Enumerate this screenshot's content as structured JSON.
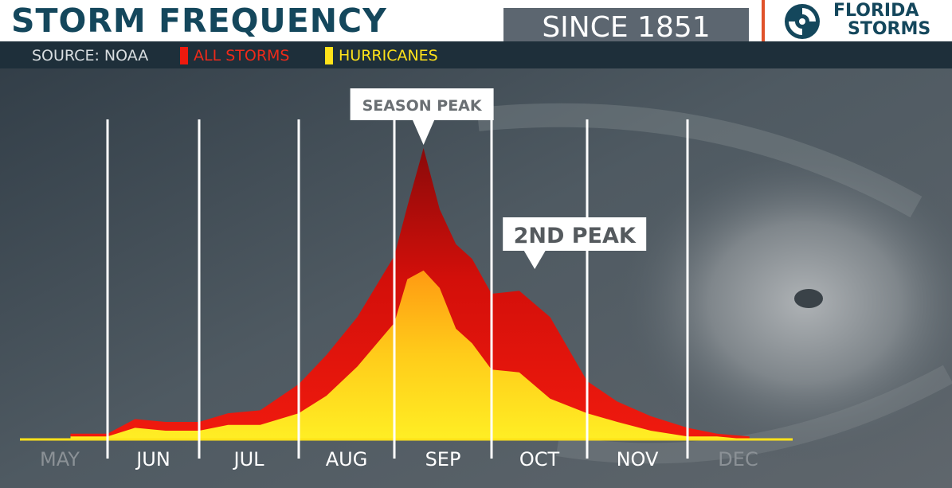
{
  "header": {
    "title": "STORM FREQUENCY",
    "since": "SINCE 1851",
    "source": "SOURCE: NOAA",
    "logo_line1": "FLORIDA",
    "logo_line2": "STORMS",
    "logo_icon": "hurricane-icon"
  },
  "colors": {
    "all_storms": "#ee1a0e",
    "hurricanes": "#ffe21a",
    "title": "#14475c",
    "accent": "#e0522a"
  },
  "chart_data": {
    "type": "area",
    "title": "STORM FREQUENCY",
    "subtitle": "SINCE 1851",
    "grid": true,
    "legend": "top-left",
    "xlabel": "",
    "ylabel": "",
    "x_ticks": [
      "MAY",
      "JUN",
      "JUL",
      "AUG",
      "SEP",
      "OCT",
      "NOV",
      "DEC"
    ],
    "x": [
      "May 20",
      "Jun 1",
      "Jun 10",
      "Jun 20",
      "Jul 1",
      "Jul 10",
      "Jul 20",
      "Aug 1",
      "Aug 10",
      "Aug 20",
      "Sep 1",
      "Sep 5",
      "Sep 10",
      "Sep 15",
      "Sep 20",
      "Sep 25",
      "Oct 1",
      "Oct 10",
      "Oct 20",
      "Nov 1",
      "Nov 10",
      "Nov 20",
      "Dec 1",
      "Dec 10",
      "Dec 20"
    ],
    "series": [
      {
        "name": "ALL STORMS",
        "values": [
          2,
          2,
          7,
          6,
          6,
          9,
          10,
          19,
          29,
          42,
          63,
          80,
          100,
          79,
          67,
          62,
          50,
          51,
          42,
          20,
          13,
          8,
          4,
          2,
          1
        ]
      },
      {
        "name": "HURRICANES",
        "values": [
          1,
          1,
          4,
          3,
          3,
          5,
          5,
          9,
          15,
          25,
          40,
          55,
          58,
          52,
          38,
          33,
          24,
          23,
          14,
          9,
          6,
          3,
          1,
          1,
          0
        ]
      }
    ],
    "annotations": [
      {
        "text": "SEASON PEAK",
        "x": "Sep 10"
      },
      {
        "text": "2ND PEAK",
        "x": "Oct 15"
      }
    ],
    "ylim": [
      0,
      100
    ]
  }
}
